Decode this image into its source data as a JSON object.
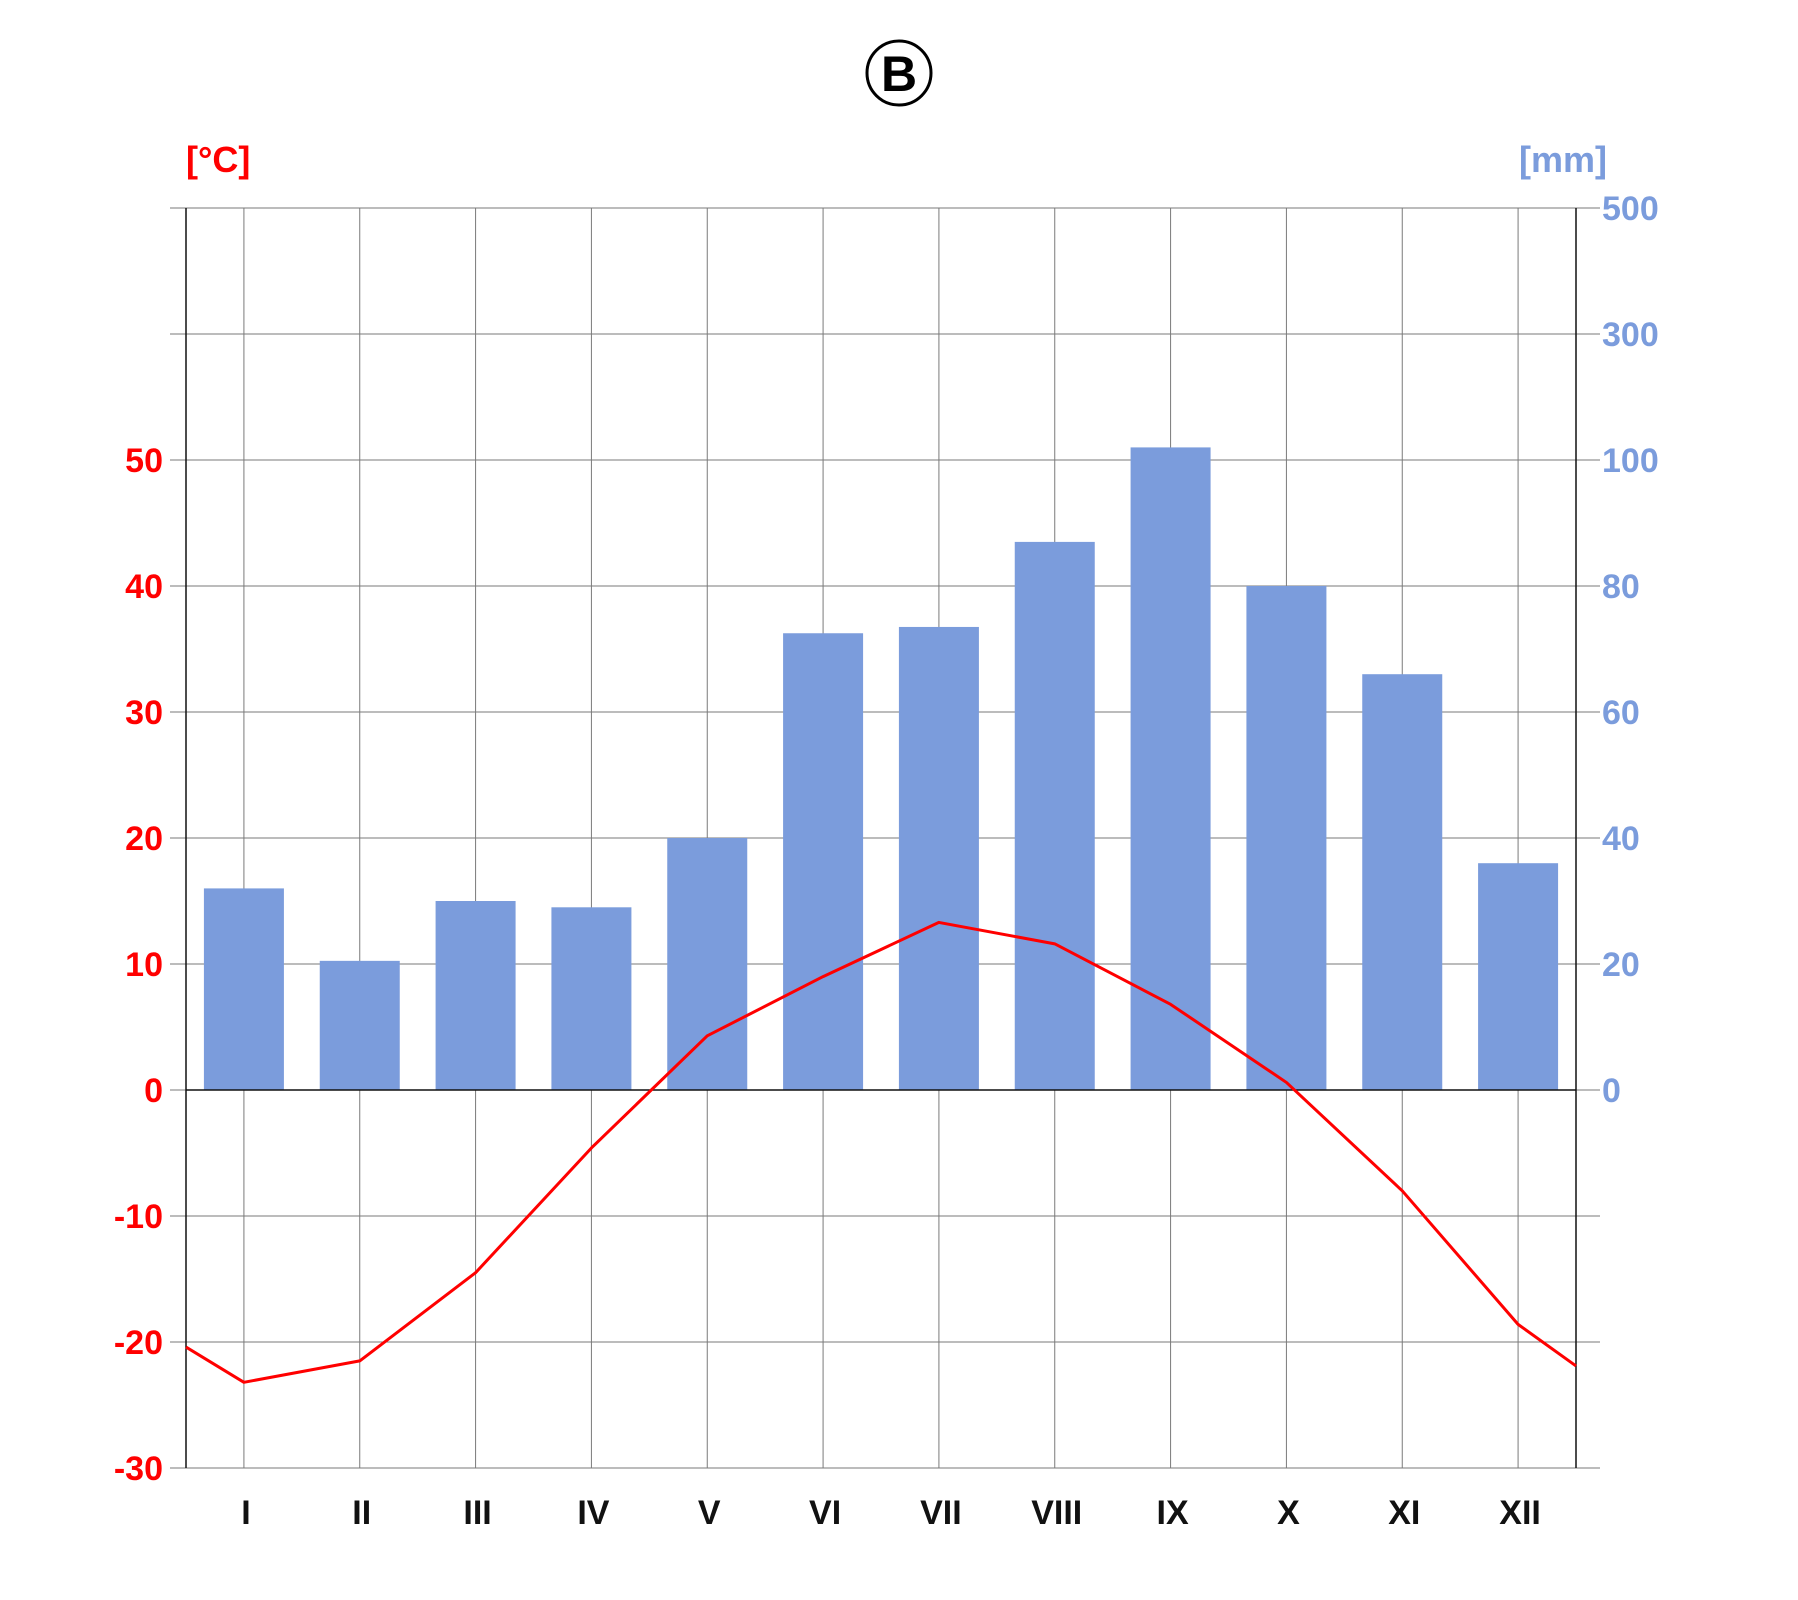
{
  "panel_label": "B",
  "colors": {
    "temperature": "#ff0000",
    "precipitation": "#7b9cdc",
    "grid": "#7a7a7a",
    "axis": "#111111"
  },
  "chart_data": {
    "type": "bar",
    "categories": [
      "I",
      "II",
      "III",
      "IV",
      "V",
      "VI",
      "VII",
      "VIII",
      "IX",
      "X",
      "XI",
      "XII"
    ],
    "left_axis": {
      "unit": "[°C]",
      "ticks": [
        -30,
        -20,
        -10,
        0,
        10,
        20,
        30,
        40,
        50
      ],
      "ylim": [
        -30,
        70
      ]
    },
    "right_axis": {
      "unit": "[mm]",
      "ticks": [
        0,
        20,
        40,
        60,
        80,
        100,
        300,
        500
      ]
    },
    "series": [
      {
        "type": "bar",
        "axis": "right",
        "values": [
          32,
          20.5,
          30,
          29,
          40,
          72.5,
          73.5,
          87,
          102,
          80,
          66,
          36
        ]
      },
      {
        "type": "line",
        "axis": "left",
        "values": [
          -23.2,
          -21.5,
          -14.5,
          -4.6,
          4.3,
          9,
          13.3,
          11.6,
          6.8,
          0.6,
          -8,
          -18.6
        ],
        "left_edge": -20.4,
        "right_edge": -21.9
      }
    ],
    "grid": true
  }
}
